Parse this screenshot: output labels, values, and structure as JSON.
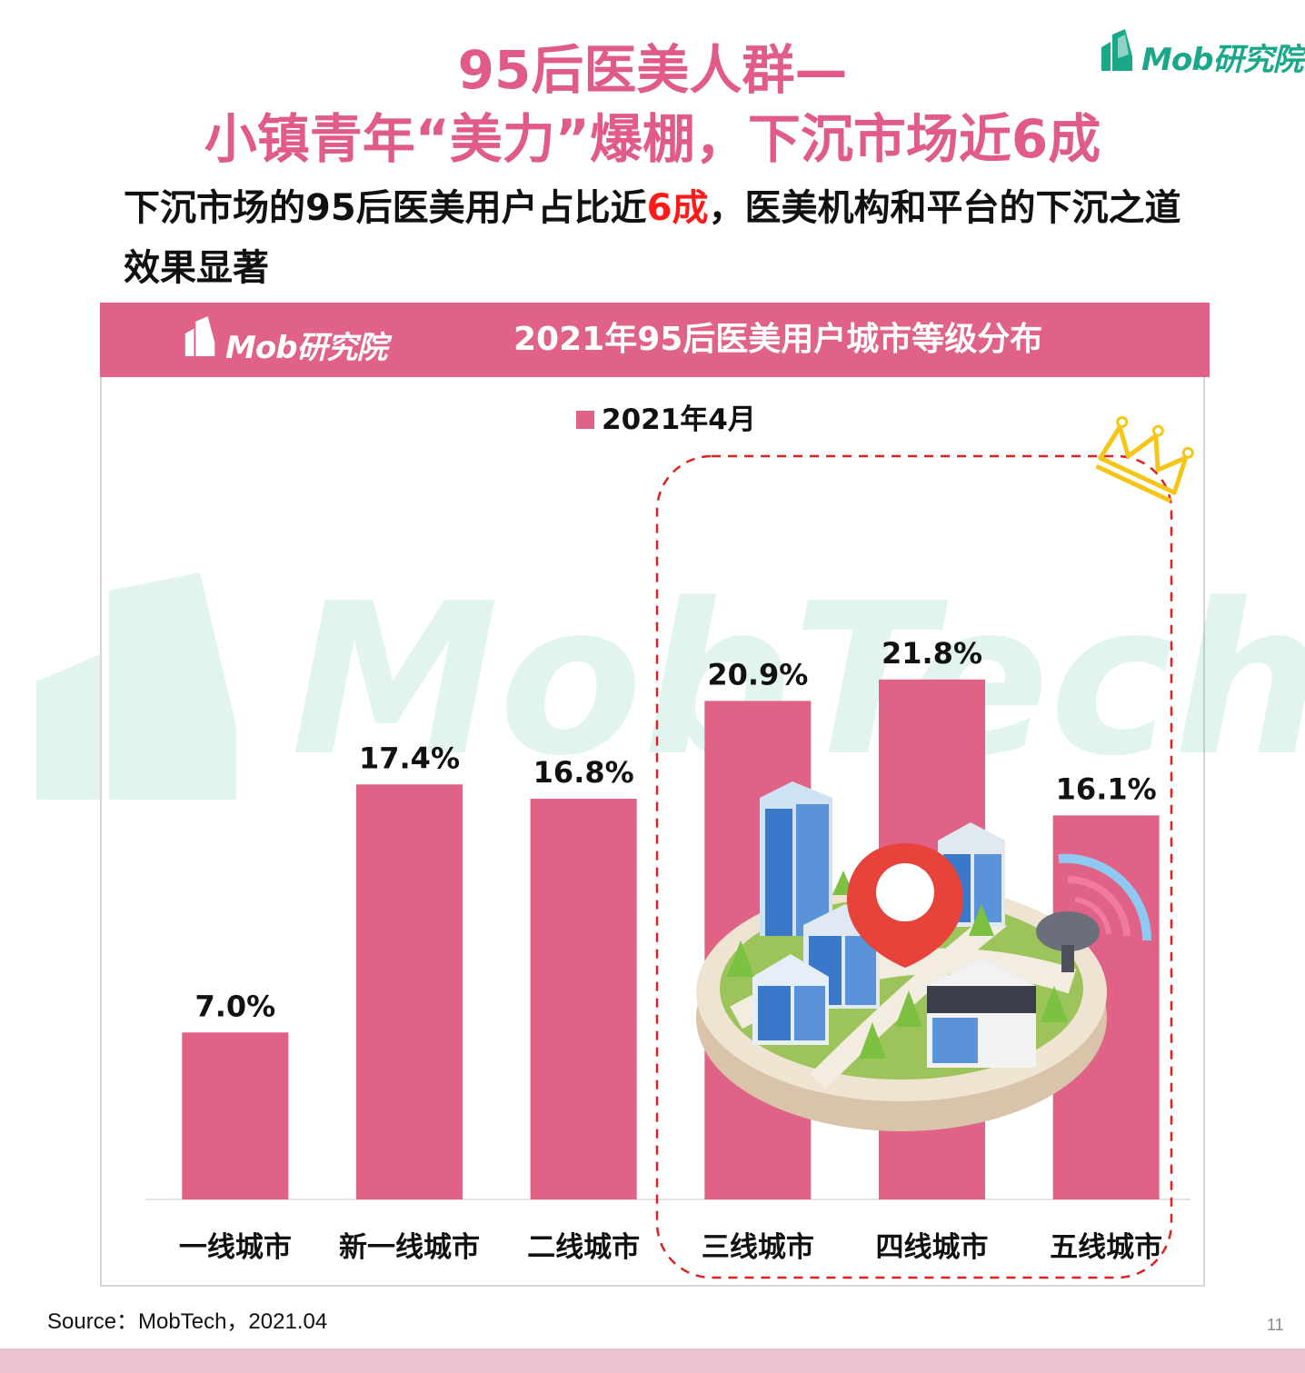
{
  "header": {
    "brand": "Mob研究院",
    "title_line1": "95后医美人群—",
    "title_line2": "小镇青年“美力”爆棚，下沉市场近6成",
    "subtitle_before": "下沉市场的95后医美用户占比近",
    "subtitle_highlight": "6成",
    "subtitle_after": "，医美机构和平台的下沉之道效果显著"
  },
  "banner": {
    "brand": "Mob研究院",
    "chart_title": "2021年95后医美用户城市等级分布"
  },
  "watermark": {
    "text": "MobTech 袤博"
  },
  "colors": {
    "accent": "#e06287",
    "title": "#e05c86",
    "highlight": "#ff1a1a",
    "brand_green": "#1aa88a",
    "dashed_box": "#e02020",
    "crown": "#f5c518"
  },
  "chart_data": {
    "type": "bar",
    "categories": [
      "一线城市",
      "新一线城市",
      "二线城市",
      "三线城市",
      "四线城市",
      "五线城市"
    ],
    "series": [
      {
        "name": "2021年4月",
        "values": [
          7.0,
          17.4,
          16.8,
          20.9,
          21.8,
          16.1
        ]
      }
    ],
    "value_labels": [
      "7.0%",
      "17.4%",
      "16.8%",
      "20.9%",
      "21.8%",
      "16.1%"
    ],
    "title": "2021年95后医美用户城市等级分布",
    "ylim": [
      0,
      28
    ],
    "grid": false,
    "legend": "top-center",
    "highlight_group": [
      "三线城市",
      "四线城市",
      "五线城市"
    ]
  },
  "footer": {
    "source": "Source：MobTech，2021.04",
    "page": "11"
  },
  "icons": [
    "mob-logo-icon",
    "crown-icon",
    "city-illustration-icon",
    "location-pin-icon",
    "satellite-dish-icon"
  ]
}
